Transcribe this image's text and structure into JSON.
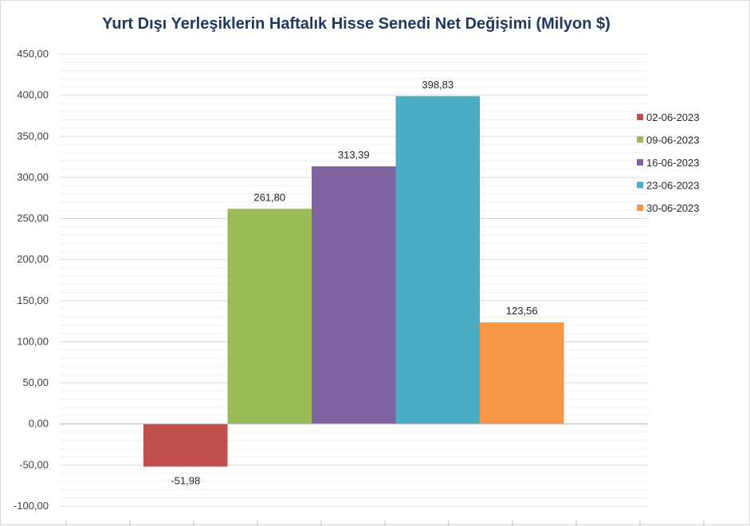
{
  "chart_data": {
    "type": "bar",
    "title": "Yurt Dışı Yerleşiklerin Haftalık Hisse Senedi Net Değişimi (Milyon $)",
    "xlabel": "",
    "ylabel": "",
    "ylim": [
      -100,
      450
    ],
    "y_major_step": 50,
    "y_minor_step": 10,
    "grid": true,
    "legend_position": "right",
    "y_tick_labels": [
      "450,00",
      "400,00",
      "350,00",
      "300,00",
      "250,00",
      "200,00",
      "150,00",
      "100,00",
      "50,00",
      "0,00",
      "-50,00",
      "-100,00"
    ],
    "series": [
      {
        "name": "02-06-2023",
        "value": -51.98,
        "label": "-51,98",
        "color": "#c0504d"
      },
      {
        "name": "09-06-2023",
        "value": 261.8,
        "label": "261,80",
        "color": "#9bbb59"
      },
      {
        "name": "16-06-2023",
        "value": 313.39,
        "label": "313,39",
        "color": "#8064a2"
      },
      {
        "name": "23-06-2023",
        "value": 398.83,
        "label": "398,83",
        "color": "#4bacc6"
      },
      {
        "name": "30-06-2023",
        "value": 123.56,
        "label": "123,56",
        "color": "#f79646"
      }
    ]
  }
}
